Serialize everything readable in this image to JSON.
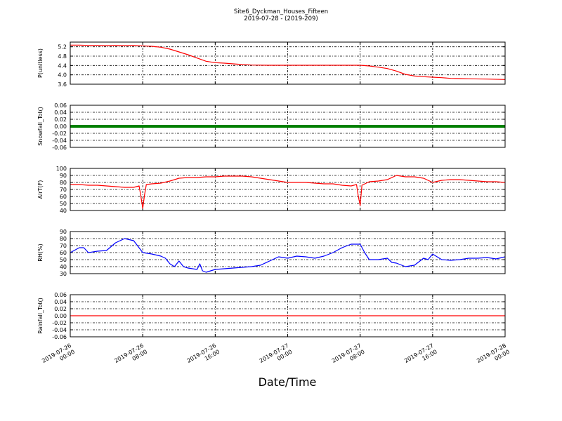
{
  "chart_data": {
    "type": "line",
    "title": "Site6_Dyckman_Houses_Fifteen",
    "subtitle": "2019-07-28 - (2019-209)",
    "xlabel": "Date/Time",
    "x_range": [
      "2019-07-26 00:00",
      "2019-07-28 00:00"
    ],
    "x_ticks": [
      {
        "line1": "2019-07-26",
        "line2": "00:00",
        "hour": 0
      },
      {
        "line1": "2019-07-26",
        "line2": "08:00",
        "hour": 8
      },
      {
        "line1": "2019-07-26",
        "line2": "16:00",
        "hour": 16
      },
      {
        "line1": "2019-07-27",
        "line2": "00:00",
        "hour": 24
      },
      {
        "line1": "2019-07-27",
        "line2": "08:00",
        "hour": 32
      },
      {
        "line1": "2019-07-27",
        "line2": "16:00",
        "hour": 40
      },
      {
        "line1": "2019-07-28",
        "line2": "00:00",
        "hour": 48
      }
    ],
    "grid": true,
    "panels": [
      {
        "ylabel": "P(unitless)",
        "ylim": [
          3.6,
          5.4
        ],
        "yticks": [
          "5.2",
          "4.8",
          "4.4",
          "4.0",
          "3.6"
        ],
        "yvalues": [
          5.2,
          4.8,
          4.4,
          4.0,
          3.6
        ],
        "color": "#ff0000",
        "series": {
          "x": [
            0,
            1,
            2,
            3,
            4,
            5,
            6,
            7,
            8,
            9,
            10,
            11,
            12,
            13,
            14,
            15,
            16,
            17,
            18,
            19,
            20,
            22,
            24,
            26,
            28,
            30,
            32,
            33,
            34,
            35,
            36,
            37,
            38,
            39,
            40,
            41,
            42,
            43,
            44,
            46,
            48
          ],
          "y": [
            5.27,
            5.27,
            5.26,
            5.26,
            5.25,
            5.26,
            5.25,
            5.26,
            5.24,
            5.22,
            5.18,
            5.1,
            4.98,
            4.86,
            4.72,
            4.58,
            4.52,
            4.5,
            4.47,
            4.44,
            4.42,
            4.41,
            4.41,
            4.41,
            4.41,
            4.41,
            4.41,
            4.38,
            4.33,
            4.27,
            4.16,
            4.02,
            3.95,
            3.92,
            3.9,
            3.88,
            3.85,
            3.84,
            3.83,
            3.82,
            3.8
          ]
        }
      },
      {
        "ylabel": "Snowfall_Tot()",
        "ylim": [
          -0.06,
          0.06
        ],
        "yticks": [
          "0.06",
          "0.04",
          "0.02",
          "0.00",
          "-0.02",
          "-0.04",
          "-0.06"
        ],
        "yvalues": [
          0.06,
          0.04,
          0.02,
          0.0,
          -0.02,
          -0.04,
          -0.06
        ],
        "color": "#008000",
        "style": "thick",
        "series": {
          "x": [
            0,
            48
          ],
          "y": [
            0.0,
            0.0
          ]
        }
      },
      {
        "ylabel": "AirT(F)",
        "ylim": [
          40,
          100
        ],
        "yticks": [
          "100",
          "90",
          "80",
          "70",
          "60",
          "50",
          "40"
        ],
        "yvalues": [
          100,
          90,
          80,
          70,
          60,
          50,
          40
        ],
        "color": "#ff0000",
        "series": {
          "x": [
            0,
            1,
            2,
            3,
            4,
            5,
            6,
            7,
            7.6,
            7.8,
            8.0,
            8.2,
            8.4,
            9,
            10,
            11,
            12,
            13,
            14,
            15,
            16,
            17,
            18,
            19,
            20,
            21,
            22,
            23,
            24,
            25,
            26,
            27,
            28,
            29,
            30,
            31,
            31.6,
            31.8,
            32.0,
            32.2,
            33,
            34,
            35,
            36,
            37,
            38,
            39,
            40,
            41,
            42,
            43,
            44,
            45,
            46,
            47,
            48
          ],
          "y": [
            77,
            77,
            76,
            76,
            75,
            74,
            73,
            73,
            75,
            60,
            43,
            62,
            77,
            78,
            79,
            82,
            86,
            87,
            87,
            88,
            88,
            89,
            89,
            89,
            88,
            86,
            84,
            82,
            80,
            80,
            80,
            79,
            78,
            78,
            76,
            75,
            77,
            60,
            47,
            76,
            81,
            82,
            84,
            90,
            88,
            88,
            86,
            80,
            83,
            84,
            84,
            83,
            82,
            81,
            81,
            80
          ]
        }
      },
      {
        "ylabel": "RH(%)",
        "ylim": [
          30,
          90
        ],
        "yticks": [
          "90",
          "80",
          "70",
          "60",
          "50",
          "40",
          "30"
        ],
        "yvalues": [
          90,
          80,
          70,
          60,
          50,
          40,
          30
        ],
        "color": "#0000ff",
        "series": {
          "x": [
            0,
            1,
            1.5,
            2,
            3,
            4,
            5,
            6,
            7,
            8,
            9,
            10,
            10.5,
            11,
            11.5,
            12,
            12.5,
            13,
            14,
            14.3,
            14.6,
            15,
            16,
            17,
            18,
            19,
            20,
            21,
            22,
            23,
            24,
            25,
            26,
            27,
            28,
            29,
            30,
            31,
            32,
            32.5,
            33,
            34,
            35,
            35.5,
            36,
            37,
            38,
            39,
            39.5,
            40,
            41,
            42,
            43,
            44,
            45,
            46,
            47,
            48
          ],
          "y": [
            60,
            67,
            67,
            60,
            62,
            63,
            74,
            80,
            77,
            60,
            58,
            55,
            52,
            44,
            40,
            48,
            40,
            38,
            36,
            44,
            34,
            32,
            36,
            37,
            38,
            39,
            40,
            42,
            48,
            54,
            52,
            55,
            54,
            52,
            55,
            60,
            67,
            72,
            72,
            60,
            50,
            50,
            52,
            46,
            45,
            40,
            42,
            52,
            50,
            58,
            50,
            49,
            50,
            52,
            52,
            53,
            51,
            54
          ]
        }
      },
      {
        "ylabel": "Rainfall_Tot()",
        "ylim": [
          -0.06,
          0.06
        ],
        "yticks": [
          "0.06",
          "0.04",
          "0.02",
          "0.00",
          "-0.02",
          "-0.04",
          "-0.06"
        ],
        "yvalues": [
          0.06,
          0.04,
          0.02,
          0.0,
          -0.02,
          -0.04,
          -0.06
        ],
        "color": "#ff0000",
        "series": {
          "x": [
            0,
            48
          ],
          "y": [
            0.0,
            0.0
          ]
        }
      }
    ]
  }
}
